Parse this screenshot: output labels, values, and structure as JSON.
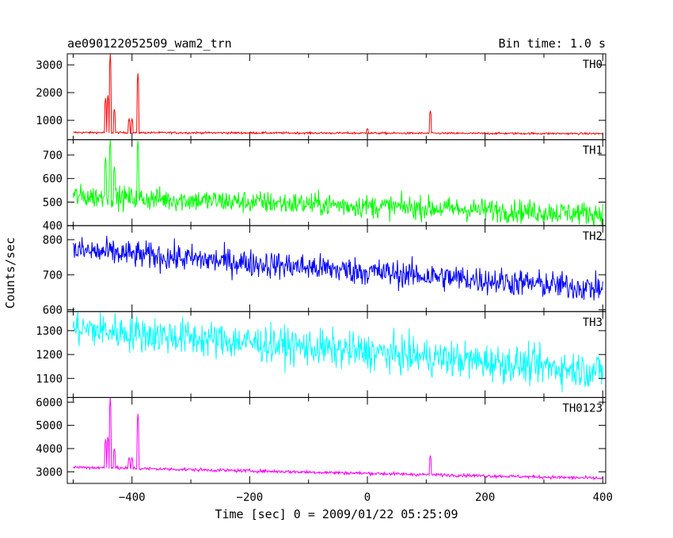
{
  "header": {
    "title": "ae090122052509_wam2_trn",
    "bin_time": "Bin time: 1.0 s"
  },
  "chart_data": {
    "type": "line",
    "xlabel": "Time [sec] 0 = 2009/01/22 05:25:09",
    "ylabel": "Counts/sec",
    "xlim": [
      -510,
      405
    ],
    "x_ticks": [
      -400,
      -200,
      0,
      200,
      400
    ],
    "x_tick_labels": [
      "−400",
      "−200",
      "0",
      "200",
      "400"
    ],
    "panels": [
      {
        "name": "TH0",
        "color": "#ff0000",
        "ylim": [
          300,
          3400
        ],
        "yticks": [
          1000,
          2000,
          3000
        ],
        "baseline": [
          [
            -500,
            560
          ],
          [
            400,
            520
          ]
        ],
        "noise": 25,
        "spikes": [
          [
            -445,
            1800
          ],
          [
            -441,
            1900
          ],
          [
            -437,
            3400
          ],
          [
            -430,
            1400
          ],
          [
            -405,
            1050
          ],
          [
            -400,
            1050
          ],
          [
            -390,
            2700
          ],
          [
            0,
            700
          ],
          [
            107,
            1350
          ]
        ]
      },
      {
        "name": "TH1",
        "color": "#00ff00",
        "ylim": [
          400,
          765
        ],
        "yticks": [
          400,
          500,
          600,
          700
        ],
        "baseline": [
          [
            -500,
            525
          ],
          [
            400,
            450
          ]
        ],
        "noise": 35,
        "spikes": [
          [
            -445,
            690
          ],
          [
            -437,
            765
          ],
          [
            -430,
            650
          ],
          [
            -390,
            760
          ]
        ]
      },
      {
        "name": "TH2",
        "color": "#0000ff",
        "ylim": [
          595,
          840
        ],
        "yticks": [
          600,
          700,
          800
        ],
        "baseline": [
          [
            -500,
            770
          ],
          [
            400,
            660
          ]
        ],
        "noise": 28,
        "spikes": []
      },
      {
        "name": "TH3",
        "color": "#00ffff",
        "ylim": [
          1020,
          1380
        ],
        "yticks": [
          1100,
          1200,
          1300
        ],
        "baseline": [
          [
            -500,
            1310
          ],
          [
            400,
            1130
          ]
        ],
        "noise": 55,
        "spikes": []
      },
      {
        "name": "TH0123",
        "color": "#ff00ff",
        "ylim": [
          2500,
          6200
        ],
        "yticks": [
          3000,
          4000,
          5000,
          6000
        ],
        "baseline": [
          [
            -500,
            3200
          ],
          [
            400,
            2720
          ]
        ],
        "noise": 50,
        "spikes": [
          [
            -445,
            4400
          ],
          [
            -441,
            4500
          ],
          [
            -437,
            6200
          ],
          [
            -430,
            4000
          ],
          [
            -405,
            3600
          ],
          [
            -400,
            3600
          ],
          [
            -390,
            5500
          ],
          [
            107,
            3700
          ]
        ]
      }
    ]
  }
}
